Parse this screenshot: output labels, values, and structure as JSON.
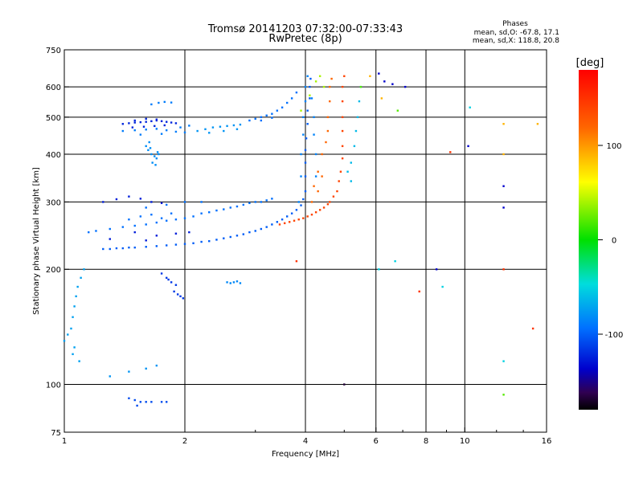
{
  "chart_data": {
    "type": "scatter",
    "title": "Tromsø 20141203 07:32:00-07:33:43",
    "subtitle": "RwPretec (8p)",
    "xlabel": "Frequency [MHz]",
    "ylabel": "Stationary phase Virtual Height [km]",
    "x_scale": "log",
    "y_scale": "log",
    "xlim": [
      1,
      16
    ],
    "ylim": [
      75,
      750
    ],
    "x_ticks": [
      1,
      2,
      4,
      6,
      8,
      10,
      16
    ],
    "x_tick_labels": [
      "1",
      "2",
      "4",
      "6",
      "8",
      "10",
      "16"
    ],
    "x_gridlines": [
      2,
      4,
      6,
      8,
      10
    ],
    "y_ticks": [
      75,
      100,
      200,
      300,
      400,
      500,
      600,
      750
    ],
    "y_tick_labels": [
      "75",
      "100",
      "200",
      "300",
      "400",
      "500",
      "600",
      "750"
    ],
    "y_gridlines": [
      100,
      200,
      300,
      400,
      500,
      600
    ],
    "grid": true,
    "phases": {
      "heading": "Phases",
      "line_o": "mean, sd,O: -67.8, 17.1",
      "line_x": "mean, sd,X: 118.8, 20.8"
    },
    "colorbar": {
      "label": "[deg]",
      "range": [
        -180,
        180
      ],
      "ticks": [
        100,
        0,
        -100
      ],
      "tick_labels": [
        "100",
        "0",
        "-100"
      ]
    },
    "series": [
      {
        "phase": -110,
        "points": [
          [
            1.4,
            480
          ],
          [
            1.45,
            482
          ],
          [
            1.5,
            484
          ],
          [
            1.55,
            485
          ],
          [
            1.6,
            486
          ],
          [
            1.65,
            488
          ],
          [
            1.7,
            490
          ],
          [
            1.75,
            488
          ],
          [
            1.8,
            486
          ],
          [
            1.85,
            484
          ],
          [
            1.9,
            482
          ],
          [
            1.48,
            470
          ],
          [
            1.58,
            472
          ],
          [
            1.68,
            474
          ],
          [
            1.78,
            476
          ],
          [
            1.5,
            490
          ],
          [
            1.6,
            495
          ],
          [
            1.7,
            493
          ]
        ]
      },
      {
        "phase": -85,
        "points": [
          [
            1.4,
            460
          ],
          [
            1.5,
            462
          ],
          [
            1.6,
            464
          ],
          [
            1.7,
            466
          ],
          [
            1.8,
            462
          ],
          [
            1.9,
            458
          ],
          [
            2.0,
            456
          ],
          [
            1.65,
            540
          ],
          [
            1.72,
            545
          ],
          [
            1.78,
            548
          ],
          [
            1.85,
            546
          ],
          [
            1.55,
            450
          ],
          [
            1.75,
            452
          ],
          [
            1.95,
            470
          ],
          [
            2.05,
            475
          ]
        ]
      },
      {
        "phase": -78,
        "points": [
          [
            1.6,
            420
          ],
          [
            1.62,
            410
          ],
          [
            1.65,
            400
          ],
          [
            1.68,
            395
          ],
          [
            1.7,
            390
          ],
          [
            1.72,
            400
          ],
          [
            1.66,
            380
          ],
          [
            1.69,
            375
          ],
          [
            1.64,
            415
          ],
          [
            1.71,
            405
          ],
          [
            1.63,
            430
          ]
        ]
      },
      {
        "phase": -75,
        "points": [
          [
            2.15,
            460
          ],
          [
            2.25,
            465
          ],
          [
            2.35,
            470
          ],
          [
            2.45,
            472
          ],
          [
            2.55,
            474
          ],
          [
            2.65,
            476
          ],
          [
            2.75,
            478
          ],
          [
            2.3,
            455
          ],
          [
            2.5,
            460
          ],
          [
            2.7,
            465
          ]
        ]
      },
      {
        "phase": -90,
        "points": [
          [
            2.9,
            490
          ],
          [
            3.0,
            495
          ],
          [
            3.1,
            500
          ],
          [
            3.2,
            505
          ],
          [
            3.3,
            510
          ],
          [
            3.4,
            520
          ],
          [
            3.5,
            530
          ],
          [
            3.6,
            545
          ],
          [
            3.7,
            560
          ],
          [
            3.8,
            580
          ],
          [
            3.1,
            490
          ],
          [
            3.3,
            498
          ]
        ]
      },
      {
        "phase": -95,
        "points": [
          [
            1.25,
            226
          ],
          [
            1.3,
            226
          ],
          [
            1.35,
            227
          ],
          [
            1.4,
            227
          ],
          [
            1.45,
            228
          ],
          [
            1.5,
            228
          ],
          [
            1.6,
            229
          ],
          [
            1.7,
            230
          ],
          [
            1.8,
            231
          ],
          [
            1.9,
            232
          ],
          [
            2.0,
            233
          ],
          [
            2.1,
            234
          ],
          [
            2.2,
            236
          ],
          [
            2.3,
            237
          ],
          [
            2.4,
            239
          ],
          [
            2.5,
            241
          ],
          [
            2.6,
            243
          ],
          [
            2.7,
            245
          ],
          [
            2.8,
            247
          ],
          [
            2.9,
            250
          ],
          [
            3.0,
            252
          ],
          [
            3.1,
            255
          ],
          [
            3.2,
            258
          ],
          [
            3.3,
            262
          ],
          [
            3.4,
            266
          ],
          [
            3.5,
            270
          ],
          [
            3.6,
            275
          ],
          [
            3.7,
            280
          ],
          [
            3.8,
            286
          ],
          [
            3.9,
            294
          ],
          [
            3.95,
            305
          ],
          [
            4.0,
            320
          ],
          [
            4.0,
            350
          ],
          [
            4.0,
            380
          ],
          [
            4.0,
            410
          ],
          [
            4.02,
            440
          ],
          [
            4.05,
            480
          ],
          [
            4.05,
            520
          ],
          [
            4.1,
            560
          ],
          [
            4.1,
            600
          ],
          [
            4.12,
            630
          ]
        ]
      },
      {
        "phase": -90,
        "points": [
          [
            1.15,
            250
          ],
          [
            1.2,
            252
          ],
          [
            1.3,
            255
          ],
          [
            1.4,
            258
          ],
          [
            1.5,
            260
          ],
          [
            1.6,
            262
          ],
          [
            1.7,
            265
          ],
          [
            1.8,
            268
          ],
          [
            1.9,
            270
          ],
          [
            2.0,
            272
          ],
          [
            1.45,
            270
          ],
          [
            1.55,
            275
          ],
          [
            1.65,
            278
          ],
          [
            1.75,
            272
          ],
          [
            1.85,
            280
          ],
          [
            2.1,
            275
          ],
          [
            2.2,
            280
          ],
          [
            2.3,
            282
          ],
          [
            2.4,
            285
          ],
          [
            2.5,
            287
          ],
          [
            2.6,
            290
          ],
          [
            2.7,
            292
          ],
          [
            2.8,
            295
          ],
          [
            2.9,
            298
          ],
          [
            3.0,
            300
          ],
          [
            3.1,
            300
          ],
          [
            3.2,
            303
          ],
          [
            3.3,
            306
          ],
          [
            1.6,
            290
          ],
          [
            1.8,
            295
          ],
          [
            2.0,
            300
          ],
          [
            2.2,
            300
          ]
        ]
      },
      {
        "phase": -112,
        "points": [
          [
            1.25,
            300
          ],
          [
            1.35,
            305
          ],
          [
            1.45,
            310
          ],
          [
            1.55,
            306
          ],
          [
            1.65,
            300
          ],
          [
            1.75,
            298
          ],
          [
            1.5,
            250
          ],
          [
            1.7,
            245
          ],
          [
            1.9,
            248
          ],
          [
            1.3,
            240
          ],
          [
            1.6,
            238
          ],
          [
            2.05,
            250
          ]
        ]
      },
      {
        "phase": -105,
        "points": [
          [
            1.75,
            195
          ],
          [
            1.8,
            190
          ],
          [
            1.85,
            185
          ],
          [
            1.9,
            182
          ],
          [
            1.88,
            175
          ],
          [
            1.92,
            172
          ],
          [
            1.95,
            170
          ],
          [
            1.98,
            168
          ],
          [
            1.82,
            188
          ]
        ]
      },
      {
        "phase": -80,
        "points": [
          [
            2.55,
            185
          ],
          [
            2.6,
            184
          ],
          [
            2.65,
            185
          ],
          [
            2.7,
            186
          ],
          [
            2.75,
            184
          ]
        ]
      },
      {
        "phase": -70,
        "points": [
          [
            1.0,
            130
          ],
          [
            1.02,
            135
          ],
          [
            1.04,
            140
          ],
          [
            1.05,
            150
          ],
          [
            1.06,
            160
          ],
          [
            1.07,
            170
          ],
          [
            1.08,
            180
          ],
          [
            1.1,
            190
          ],
          [
            1.12,
            200
          ],
          [
            1.05,
            120
          ],
          [
            1.06,
            125
          ],
          [
            1.09,
            115
          ]
        ]
      },
      {
        "phase": -100,
        "points": [
          [
            1.45,
            92
          ],
          [
            1.5,
            91
          ],
          [
            1.55,
            90
          ],
          [
            1.6,
            90
          ],
          [
            1.65,
            90
          ],
          [
            1.75,
            90
          ],
          [
            1.8,
            90
          ],
          [
            1.52,
            88
          ]
        ]
      },
      {
        "phase": -75,
        "points": [
          [
            1.3,
            105
          ],
          [
            1.45,
            108
          ],
          [
            1.6,
            110
          ],
          [
            1.7,
            112
          ]
        ]
      },
      {
        "phase": -82,
        "points": [
          [
            3.85,
            300
          ],
          [
            3.9,
            350
          ],
          [
            3.9,
            400
          ],
          [
            3.95,
            450
          ],
          [
            3.95,
            500
          ],
          [
            4.0,
            550
          ],
          [
            4.0,
            600
          ],
          [
            4.05,
            640
          ],
          [
            4.15,
            560
          ],
          [
            4.2,
            500
          ],
          [
            4.2,
            450
          ],
          [
            4.25,
            400
          ],
          [
            4.25,
            350
          ]
        ]
      },
      {
        "phase": 140,
        "points": [
          [
            3.45,
            262
          ],
          [
            3.55,
            264
          ],
          [
            3.65,
            266
          ],
          [
            3.75,
            268
          ],
          [
            3.85,
            270
          ],
          [
            3.95,
            272
          ],
          [
            4.05,
            275
          ],
          [
            4.15,
            278
          ],
          [
            4.25,
            282
          ],
          [
            4.35,
            286
          ],
          [
            4.45,
            290
          ],
          [
            4.55,
            296
          ],
          [
            4.6,
            300
          ],
          [
            4.7,
            310
          ],
          [
            4.8,
            320
          ],
          [
            4.85,
            340
          ],
          [
            4.9,
            360
          ],
          [
            4.95,
            390
          ],
          [
            4.95,
            420
          ],
          [
            4.95,
            460
          ],
          [
            4.95,
            500
          ],
          [
            4.95,
            550
          ],
          [
            4.95,
            600
          ],
          [
            5.0,
            640
          ]
        ]
      },
      {
        "phase": 120,
        "points": [
          [
            4.15,
            300
          ],
          [
            4.2,
            330
          ],
          [
            4.3,
            360
          ],
          [
            4.4,
            400
          ],
          [
            4.5,
            430
          ],
          [
            4.55,
            460
          ],
          [
            4.55,
            500
          ],
          [
            4.6,
            550
          ],
          [
            4.6,
            600
          ],
          [
            4.65,
            630
          ],
          [
            4.3,
            320
          ],
          [
            4.4,
            350
          ]
        ]
      },
      {
        "phase": -60,
        "points": [
          [
            5.1,
            360
          ],
          [
            5.2,
            380
          ],
          [
            5.3,
            420
          ],
          [
            5.35,
            460
          ],
          [
            5.4,
            500
          ],
          [
            5.45,
            550
          ],
          [
            5.5,
            600
          ],
          [
            5.2,
            340
          ]
        ]
      },
      {
        "phase": 40,
        "points": [
          [
            4.25,
            620
          ],
          [
            4.35,
            640
          ],
          [
            4.45,
            600
          ],
          [
            4.1,
            570
          ],
          [
            3.9,
            520
          ]
        ]
      },
      {
        "phase": -120,
        "points": [
          [
            6.3,
            620
          ],
          [
            6.6,
            610
          ],
          [
            7.1,
            600
          ],
          [
            8.5,
            200
          ],
          [
            10.2,
            420
          ],
          [
            12.5,
            330
          ],
          [
            12.5,
            290
          ],
          [
            6.1,
            650
          ]
        ]
      },
      {
        "phase": 90,
        "points": [
          [
            12.5,
            480
          ],
          [
            12.5,
            400
          ],
          [
            15.2,
            480
          ],
          [
            5.8,
            640
          ],
          [
            6.2,
            560
          ]
        ]
      },
      {
        "phase": -50,
        "points": [
          [
            10.3,
            530
          ],
          [
            12.5,
            115
          ],
          [
            8.8,
            180
          ],
          [
            6.1,
            200
          ],
          [
            6.7,
            210
          ]
        ]
      },
      {
        "phase": 150,
        "points": [
          [
            9.2,
            405
          ],
          [
            12.5,
            200
          ],
          [
            14.8,
            140
          ],
          [
            7.7,
            175
          ],
          [
            3.8,
            210
          ]
        ]
      },
      {
        "phase": 20,
        "points": [
          [
            12.5,
            94
          ],
          [
            6.8,
            520
          ],
          [
            5.5,
            600
          ]
        ]
      },
      {
        "phase": -160,
        "points": [
          [
            5.0,
            100
          ]
        ]
      }
    ]
  }
}
